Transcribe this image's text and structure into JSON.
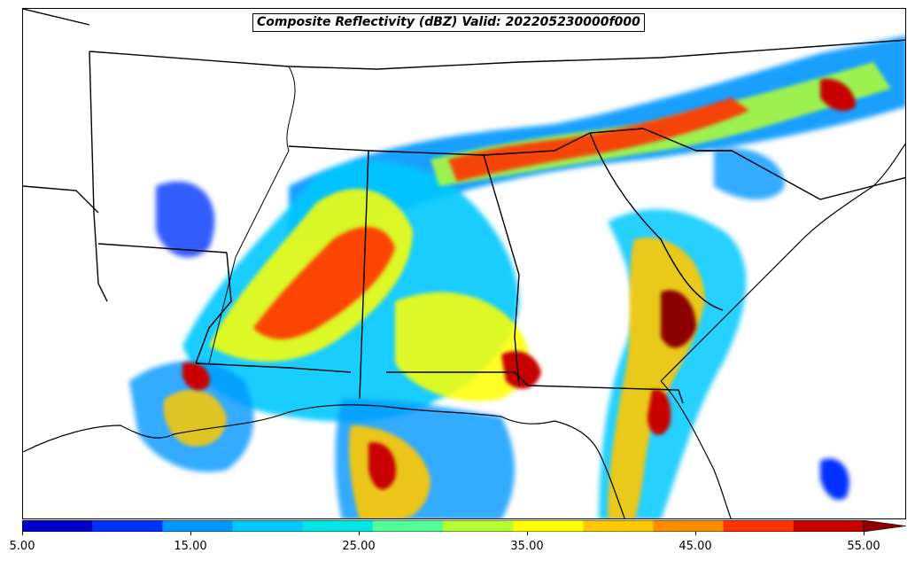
{
  "title": "Composite Reflectivity (dBZ) Valid: 202205230000f000",
  "colorbar": {
    "ticks": [
      "5.00",
      "15.00",
      "25.00",
      "35.00",
      "45.00",
      "55.00"
    ],
    "colors": [
      "#0000c8",
      "#0032ff",
      "#0096ff",
      "#00c8ff",
      "#00e6e6",
      "#50ff96",
      "#b4ff32",
      "#ffff00",
      "#ffc800",
      "#ff8c00",
      "#ff3200",
      "#c80000",
      "#8c0000"
    ]
  },
  "map": {
    "field": "composite-reflectivity",
    "colors": {
      "land": "#ffffff",
      "borders": "#000000"
    }
  }
}
